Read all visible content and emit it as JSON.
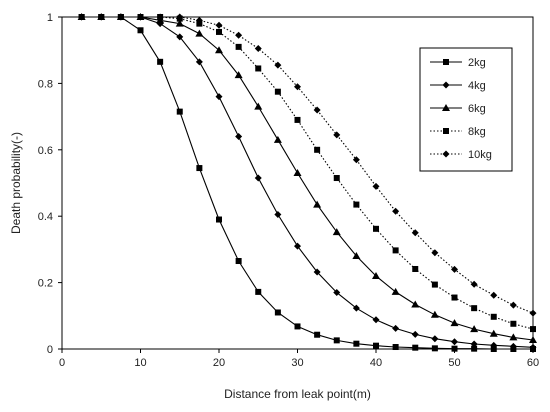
{
  "chart_data": {
    "type": "line",
    "title": "",
    "xlabel": "Distance from leak point(m)",
    "ylabel": "Death probability(-)",
    "xlim": [
      0,
      60
    ],
    "ylim": [
      0,
      1
    ],
    "x_ticks": [
      0,
      10,
      20,
      30,
      40,
      50,
      60
    ],
    "y_ticks": [
      0,
      0.2,
      0.4,
      0.6,
      0.8,
      1
    ],
    "x_tick_labels": [
      "0",
      "10",
      "20",
      "30",
      "40",
      "50",
      "60"
    ],
    "y_tick_labels": [
      "0",
      "0.2",
      "0.4",
      "0.6",
      "0.8",
      "1"
    ],
    "grid": false,
    "legend_position": "top-right",
    "x": [
      2.5,
      5,
      7.5,
      10,
      12.5,
      15,
      17.5,
      20,
      22.5,
      25,
      27.5,
      30,
      32.5,
      35,
      37.5,
      40,
      42.5,
      45,
      47.5,
      50,
      52.5,
      55,
      57.5,
      60
    ],
    "series": [
      {
        "name": "2kg",
        "marker": "square",
        "line": "solid",
        "color": "#000000",
        "values": [
          1,
          1,
          1,
          0.96,
          0.865,
          0.715,
          0.545,
          0.39,
          0.265,
          0.172,
          0.11,
          0.068,
          0.043,
          0.026,
          0.016,
          0.01,
          0.006,
          0.004,
          0.002,
          0.001,
          0.001,
          0,
          0,
          0
        ]
      },
      {
        "name": "4kg",
        "marker": "diamond",
        "line": "solid",
        "color": "#000000",
        "values": [
          1,
          1,
          1,
          1,
          0.98,
          0.94,
          0.865,
          0.76,
          0.64,
          0.515,
          0.405,
          0.31,
          0.232,
          0.17,
          0.123,
          0.088,
          0.062,
          0.044,
          0.031,
          0.022,
          0.015,
          0.011,
          0.008,
          0.005
        ]
      },
      {
        "name": "6kg",
        "marker": "triangle",
        "line": "solid",
        "color": "#000000",
        "values": [
          1,
          1,
          1,
          1,
          0.99,
          0.98,
          0.95,
          0.9,
          0.825,
          0.73,
          0.63,
          0.53,
          0.435,
          0.352,
          0.28,
          0.22,
          0.172,
          0.134,
          0.103,
          0.078,
          0.06,
          0.046,
          0.035,
          0.027
        ]
      },
      {
        "name": "8kg",
        "marker": "square",
        "line": "dotted",
        "color": "#000000",
        "values": [
          1,
          1,
          1,
          1,
          1,
          0.995,
          0.98,
          0.955,
          0.91,
          0.845,
          0.775,
          0.69,
          0.6,
          0.515,
          0.435,
          0.362,
          0.297,
          0.241,
          0.194,
          0.155,
          0.123,
          0.097,
          0.076,
          0.06
        ]
      },
      {
        "name": "10kg",
        "marker": "diamond",
        "line": "dotted",
        "color": "#000000",
        "values": [
          1,
          1,
          1,
          1,
          1,
          1,
          0.99,
          0.975,
          0.945,
          0.905,
          0.855,
          0.79,
          0.72,
          0.645,
          0.57,
          0.49,
          0.415,
          0.35,
          0.29,
          0.24,
          0.195,
          0.162,
          0.132,
          0.108
        ]
      }
    ]
  }
}
